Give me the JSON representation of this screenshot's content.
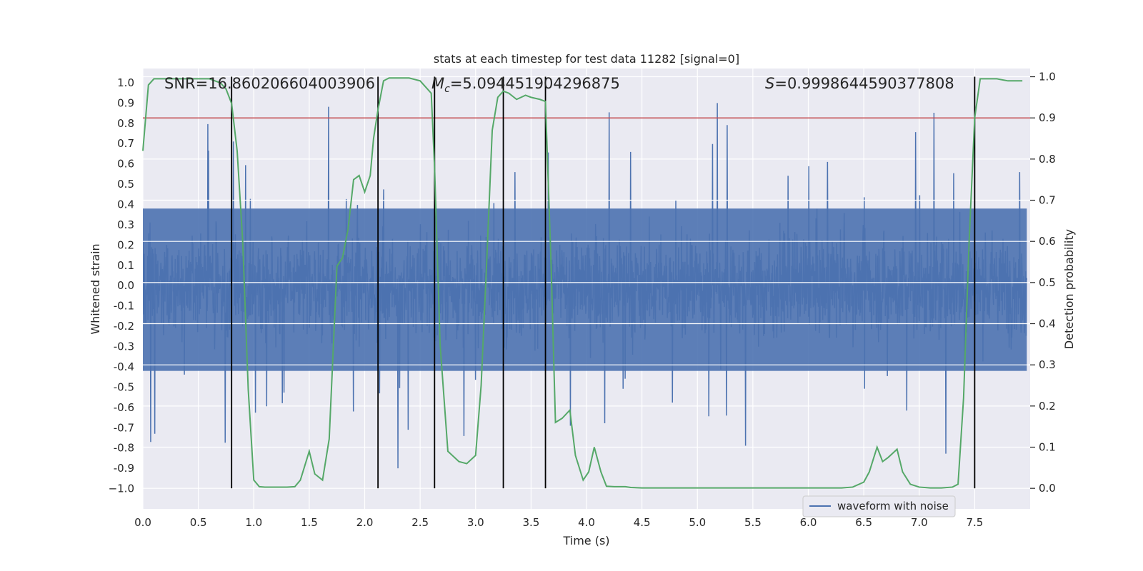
{
  "chart_data": {
    "type": "line",
    "title": "stats at each timestep for test data 11282 [signal=0]",
    "xlabel": "Time (s)",
    "ylabel_left": "Whitened strain",
    "ylabel_right": "Detection probability",
    "xlim": [
      0.0,
      8.0
    ],
    "ylim_left": [
      -1.1,
      1.07
    ],
    "ylim_right": [
      -0.05,
      1.02
    ],
    "x_ticks": [
      "0.0",
      "0.5",
      "1.0",
      "1.5",
      "2.0",
      "2.5",
      "3.0",
      "3.5",
      "4.0",
      "4.5",
      "5.0",
      "5.5",
      "6.0",
      "6.5",
      "7.0",
      "7.5"
    ],
    "y_ticks_left": [
      "1.0",
      "0.9",
      "0.8",
      "0.7",
      "0.6",
      "0.5",
      "0.4",
      "0.3",
      "0.2",
      "0.1",
      "0.0",
      "-0.1",
      "-0.2",
      "-0.3",
      "-0.4",
      "-0.5",
      "-0.6",
      "-0.7",
      "-0.8",
      "-0.9",
      "−1.0"
    ],
    "y_ticks_right": [
      "1.0",
      "0.9",
      "0.8",
      "0.7",
      "0.6",
      "0.5",
      "0.4",
      "0.3",
      "0.2",
      "0.1",
      "0.0"
    ],
    "grid": true,
    "legend_position": "lower-right",
    "annotations": {
      "snr": "SNR=16.860206604003906",
      "mc_symbol": "M",
      "mc_sub": "c",
      "mc_value": "=5.094451904296875",
      "s_symbol": "S",
      "s_value": "=0.9998644590377808"
    },
    "threshold": {
      "right_axis_value": 0.9,
      "color": "#c44e52"
    },
    "event_markers_x": [
      0.8,
      2.12,
      2.63,
      3.25,
      3.63,
      7.5
    ],
    "series": [
      {
        "name": "waveform with noise",
        "axis": "left",
        "color": "#4c72b0",
        "envelope_typical": 0.45,
        "envelope_max": 1.0
      },
      {
        "axis": "right",
        "color": "#55a868",
        "x": [
          0.0,
          0.05,
          0.1,
          0.15,
          0.2,
          0.3,
          0.4,
          0.5,
          0.6,
          0.65,
          0.7,
          0.75,
          0.8,
          0.85,
          0.9,
          0.95,
          1.0,
          1.05,
          1.1,
          1.2,
          1.3,
          1.37,
          1.42,
          1.5,
          1.55,
          1.62,
          1.68,
          1.75,
          1.8,
          1.85,
          1.9,
          1.95,
          2.0,
          2.05,
          2.08,
          2.12,
          2.17,
          2.22,
          2.3,
          2.4,
          2.5,
          2.6,
          2.63,
          2.68,
          2.75,
          2.85,
          2.92,
          3.0,
          3.05,
          3.1,
          3.15,
          3.2,
          3.25,
          3.3,
          3.37,
          3.45,
          3.5,
          3.58,
          3.63,
          3.68,
          3.72,
          3.78,
          3.85,
          3.9,
          3.97,
          4.02,
          4.07,
          4.13,
          4.18,
          4.25,
          4.35,
          4.4,
          4.5,
          4.7,
          5.0,
          5.5,
          6.0,
          6.3,
          6.4,
          6.5,
          6.55,
          6.62,
          6.67,
          6.72,
          6.8,
          6.85,
          6.92,
          7.0,
          7.1,
          7.2,
          7.3,
          7.35,
          7.4,
          7.45,
          7.5,
          7.55,
          7.58,
          7.65,
          7.7,
          7.8,
          7.93
        ],
        "y": [
          0.82,
          0.98,
          0.995,
          0.995,
          0.995,
          0.995,
          0.995,
          0.995,
          0.995,
          0.99,
          0.985,
          0.97,
          0.935,
          0.82,
          0.6,
          0.24,
          0.02,
          0.004,
          0.003,
          0.003,
          0.003,
          0.004,
          0.02,
          0.09,
          0.035,
          0.02,
          0.12,
          0.54,
          0.56,
          0.63,
          0.75,
          0.76,
          0.72,
          0.76,
          0.85,
          0.92,
          0.99,
          0.997,
          0.997,
          0.997,
          0.99,
          0.96,
          0.78,
          0.35,
          0.09,
          0.065,
          0.06,
          0.08,
          0.25,
          0.55,
          0.87,
          0.95,
          0.965,
          0.96,
          0.945,
          0.955,
          0.95,
          0.945,
          0.94,
          0.55,
          0.16,
          0.17,
          0.19,
          0.08,
          0.02,
          0.04,
          0.1,
          0.04,
          0.005,
          0.004,
          0.004,
          0.002,
          0.001,
          0.001,
          0.001,
          0.001,
          0.001,
          0.001,
          0.003,
          0.015,
          0.04,
          0.1,
          0.065,
          0.075,
          0.095,
          0.04,
          0.01,
          0.003,
          0.001,
          0.001,
          0.003,
          0.01,
          0.22,
          0.6,
          0.9,
          0.995,
          0.995,
          0.995,
          0.995,
          0.99,
          0.99
        ]
      }
    ]
  }
}
